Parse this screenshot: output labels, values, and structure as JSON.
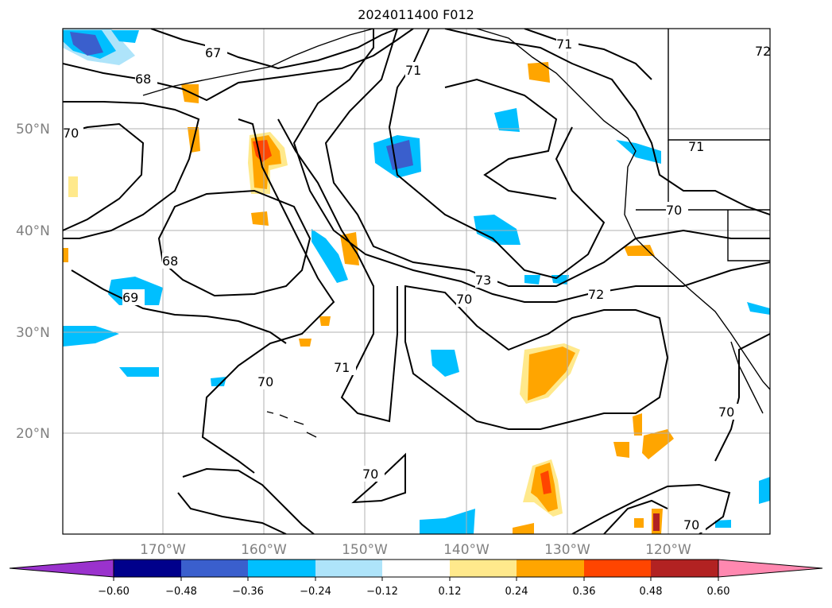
{
  "title": "2024011400 F012",
  "map": {
    "lat_labels": [
      "50°N",
      "40°N",
      "30°N",
      "20°N"
    ],
    "lon_labels": [
      "170°W",
      "160°W",
      "150°W",
      "140°W",
      "130°W",
      "120°W"
    ],
    "contour_labels": [
      "67",
      "68",
      "70",
      "71",
      "71",
      "68",
      "69",
      "73",
      "70",
      "72",
      "70",
      "70",
      "71",
      "70",
      "70",
      "70",
      "72",
      "71"
    ],
    "contour_color": "#000000",
    "grid_color": "#b0b0b0",
    "coastline_color": "#000000"
  },
  "colorbar": {
    "ticks": [
      "−0.60",
      "−0.48",
      "−0.36",
      "−0.24",
      "−0.12",
      "0.12",
      "0.24",
      "0.36",
      "0.48",
      "0.60"
    ],
    "colors": [
      "#9a32cd",
      "#00008b",
      "#3a5fcd",
      "#00bfff",
      "#aee4fa",
      "#ffffff",
      "#ffe98c",
      "#ffa500",
      "#ff4500",
      "#b22222",
      "#ff88b0"
    ]
  }
}
